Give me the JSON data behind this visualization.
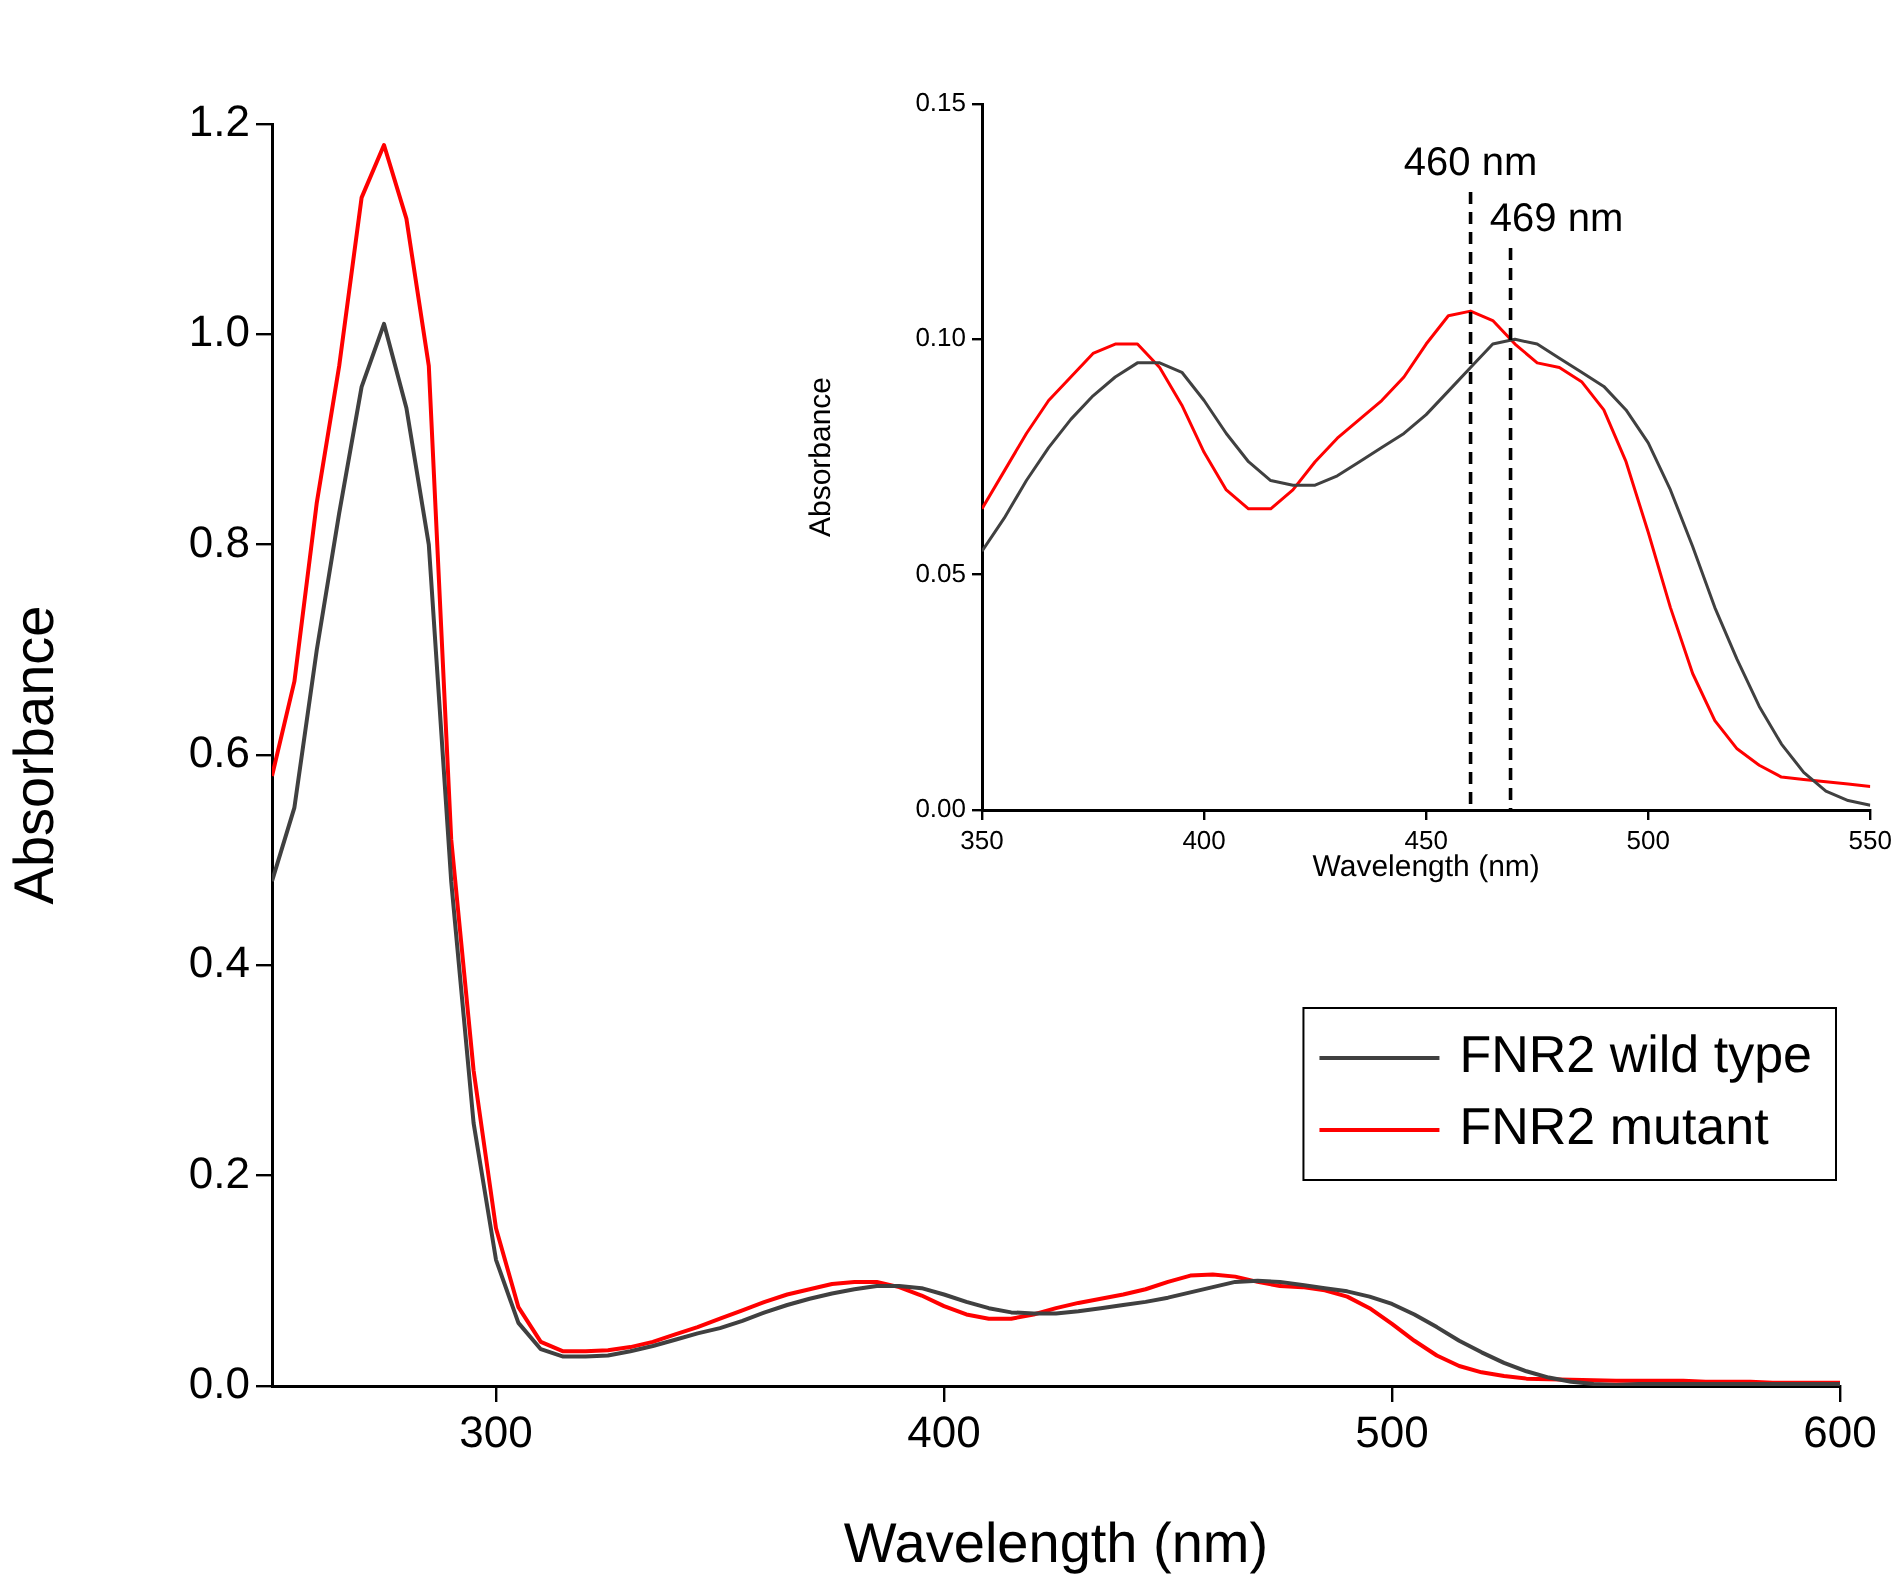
{
  "chart_data": [
    {
      "type": "line",
      "xlabel": "Wavelength (nm)",
      "ylabel": "Absorbance",
      "xlim": [
        250,
        600
      ],
      "xticks": [
        300,
        400,
        500,
        600
      ],
      "ylim": [
        0,
        1.2
      ],
      "yticks": [
        {
          "value": 0,
          "label": "0.0"
        },
        {
          "value": 0.2,
          "label": "0.2"
        },
        {
          "value": 0.4,
          "label": "0.4"
        },
        {
          "value": 0.6,
          "label": "0.6"
        },
        {
          "value": 0.8,
          "label": "0.8"
        },
        {
          "value": 1,
          "label": "1.0"
        },
        {
          "value": 1.2,
          "label": "1.2"
        }
      ],
      "legend": "bottom right",
      "marker": "none",
      "line_style": "solid",
      "series": [
        {
          "name": "FNR2 wild type",
          "color": "#404040",
          "x": [
            250,
            255,
            260,
            265,
            270,
            275,
            280,
            285,
            290,
            295,
            300,
            305,
            310,
            315,
            320,
            325,
            330,
            335,
            340,
            345,
            350,
            355,
            360,
            365,
            370,
            375,
            380,
            385,
            390,
            395,
            400,
            405,
            410,
            415,
            420,
            425,
            430,
            435,
            440,
            445,
            450,
            455,
            460,
            465,
            470,
            475,
            480,
            485,
            490,
            495,
            500,
            505,
            510,
            515,
            520,
            525,
            530,
            535,
            540,
            545,
            550,
            555,
            560,
            565,
            570,
            575,
            580,
            585,
            590,
            595,
            600
          ],
          "values": [
            0.48,
            0.55,
            0.7,
            0.83,
            0.95,
            1.01,
            0.93,
            0.8,
            0.48,
            0.25,
            0.12,
            0.06,
            0.035,
            0.028,
            0.028,
            0.029,
            0.033,
            0.038,
            0.044,
            0.05,
            0.055,
            0.062,
            0.07,
            0.077,
            0.083,
            0.088,
            0.092,
            0.095,
            0.095,
            0.093,
            0.087,
            0.08,
            0.074,
            0.07,
            0.069,
            0.069,
            0.071,
            0.074,
            0.077,
            0.08,
            0.084,
            0.089,
            0.094,
            0.099,
            0.1,
            0.099,
            0.096,
            0.093,
            0.09,
            0.085,
            0.078,
            0.068,
            0.056,
            0.043,
            0.032,
            0.022,
            0.014,
            0.008,
            0.004,
            0.002,
            0.001,
            0.002,
            0.002,
            0.002,
            0.002,
            0.002,
            0.002,
            0.002,
            0.002,
            0.002,
            0.002
          ]
        },
        {
          "name": "FNR2 mutant",
          "color": "#ff0000",
          "x": [
            250,
            255,
            260,
            265,
            270,
            275,
            280,
            285,
            290,
            295,
            300,
            305,
            310,
            315,
            320,
            325,
            330,
            335,
            340,
            345,
            350,
            355,
            360,
            365,
            370,
            375,
            380,
            385,
            390,
            395,
            400,
            405,
            410,
            415,
            420,
            425,
            430,
            435,
            440,
            445,
            450,
            455,
            460,
            465,
            470,
            475,
            480,
            485,
            490,
            495,
            500,
            505,
            510,
            515,
            520,
            525,
            530,
            535,
            540,
            545,
            550,
            555,
            560,
            565,
            570,
            575,
            580,
            585,
            590,
            595,
            600
          ],
          "values": [
            0.58,
            0.67,
            0.84,
            0.97,
            1.13,
            1.18,
            1.11,
            0.97,
            0.52,
            0.3,
            0.15,
            0.075,
            0.042,
            0.033,
            0.033,
            0.034,
            0.037,
            0.042,
            0.049,
            0.056,
            0.064,
            0.072,
            0.08,
            0.087,
            0.092,
            0.097,
            0.099,
            0.099,
            0.094,
            0.086,
            0.076,
            0.068,
            0.064,
            0.064,
            0.068,
            0.074,
            0.079,
            0.083,
            0.087,
            0.092,
            0.099,
            0.105,
            0.106,
            0.104,
            0.099,
            0.095,
            0.094,
            0.091,
            0.085,
            0.074,
            0.059,
            0.043,
            0.029,
            0.019,
            0.013,
            0.0095,
            0.007,
            0.0065,
            0.006,
            0.0055,
            0.005,
            0.005,
            0.005,
            0.005,
            0.004,
            0.004,
            0.004,
            0.003,
            0.003,
            0.003,
            0.003
          ]
        }
      ]
    },
    {
      "type": "line",
      "xlabel": "Wavelength (nm)",
      "ylabel": "Absorbance",
      "xlim": [
        350,
        550
      ],
      "xticks": [
        350,
        400,
        450,
        500,
        550
      ],
      "ylim": [
        0,
        0.15
      ],
      "yticks": [
        {
          "value": 0,
          "label": "0.00"
        },
        {
          "value": 0.05,
          "label": "0.05"
        },
        {
          "value": 0.1,
          "label": "0.10"
        },
        {
          "value": 0.15,
          "label": "0.15"
        }
      ],
      "marker": "none",
      "line_style": "solid",
      "ref_lines": [
        {
          "axis": "x",
          "value": 460,
          "label": "460 nm",
          "color": "#000000",
          "line_style": "dashed"
        },
        {
          "axis": "x",
          "value": 469,
          "label": "469 nm",
          "color": "#000000",
          "line_style": "dashed"
        }
      ],
      "series": [
        {
          "color": "#404040",
          "x": [
            350,
            355,
            360,
            365,
            370,
            375,
            380,
            385,
            390,
            395,
            400,
            405,
            410,
            415,
            420,
            425,
            430,
            435,
            440,
            445,
            450,
            455,
            460,
            465,
            470,
            475,
            480,
            485,
            490,
            495,
            500,
            505,
            510,
            515,
            520,
            525,
            530,
            535,
            540,
            545,
            550
          ],
          "values": [
            0.055,
            0.062,
            0.07,
            0.077,
            0.083,
            0.088,
            0.092,
            0.095,
            0.095,
            0.093,
            0.087,
            0.08,
            0.074,
            0.07,
            0.069,
            0.069,
            0.071,
            0.074,
            0.077,
            0.08,
            0.084,
            0.089,
            0.094,
            0.099,
            0.1,
            0.099,
            0.096,
            0.093,
            0.09,
            0.085,
            0.078,
            0.068,
            0.056,
            0.043,
            0.032,
            0.022,
            0.014,
            0.008,
            0.004,
            0.002,
            0.001
          ]
        },
        {
          "color": "#ff0000",
          "x": [
            350,
            355,
            360,
            365,
            370,
            375,
            380,
            385,
            390,
            395,
            400,
            405,
            410,
            415,
            420,
            425,
            430,
            435,
            440,
            445,
            450,
            455,
            460,
            465,
            470,
            475,
            480,
            485,
            490,
            495,
            500,
            505,
            510,
            515,
            520,
            525,
            530,
            535,
            540,
            545,
            550
          ],
          "values": [
            0.064,
            0.072,
            0.08,
            0.087,
            0.092,
            0.097,
            0.099,
            0.099,
            0.094,
            0.086,
            0.076,
            0.068,
            0.064,
            0.064,
            0.068,
            0.074,
            0.079,
            0.083,
            0.087,
            0.092,
            0.099,
            0.105,
            0.106,
            0.104,
            0.099,
            0.095,
            0.094,
            0.091,
            0.085,
            0.074,
            0.059,
            0.043,
            0.029,
            0.019,
            0.013,
            0.0095,
            0.007,
            0.0065,
            0.006,
            0.0055,
            0.005
          ]
        }
      ]
    }
  ]
}
